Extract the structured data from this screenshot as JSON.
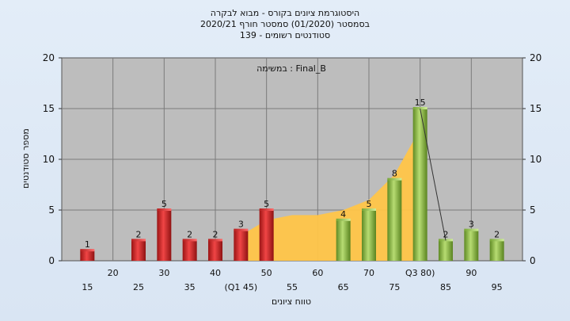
{
  "chart_data": {
    "type": "bar",
    "title": [
      "היסטוגרמת ציונים בקורס - מבוא לבקרה",
      "בסמסטר  (01/2020)  סמסטר חורף 2020/21",
      "139 - סטודנטים רשומים"
    ],
    "annotation": "במשימה : Final_B",
    "ylabel": "מספר סטודנטים",
    "xlabel": "טווח ציונים",
    "ylim": [
      0,
      20
    ],
    "yticks": [
      0,
      5,
      10,
      15,
      20
    ],
    "grid": true,
    "x_top_row": [
      "20",
      "30",
      "40",
      "50",
      "60",
      "70",
      "Q3 80)",
      "90"
    ],
    "x_top_positions": [
      20,
      30,
      40,
      50,
      60,
      70,
      80,
      90
    ],
    "x_bottom_row": [
      "15",
      "25",
      "35",
      "(Q1 45)",
      "55",
      "65",
      "75",
      "85",
      "95"
    ],
    "x_bottom_positions": [
      15,
      25,
      35,
      45,
      55,
      65,
      75,
      85,
      95
    ],
    "bars": [
      {
        "x": 15,
        "value": 1,
        "color": "red"
      },
      {
        "x": 20,
        "value": 0,
        "color": "red"
      },
      {
        "x": 25,
        "value": 2,
        "color": "red"
      },
      {
        "x": 30,
        "value": 5,
        "color": "red"
      },
      {
        "x": 35,
        "value": 2,
        "color": "red"
      },
      {
        "x": 40,
        "value": 2,
        "color": "red"
      },
      {
        "x": 45,
        "value": 3,
        "color": "red"
      },
      {
        "x": 50,
        "value": 5,
        "color": "red"
      },
      {
        "x": 65,
        "value": 4,
        "color": "green"
      },
      {
        "x": 70,
        "value": 5,
        "color": "green"
      },
      {
        "x": 75,
        "value": 8,
        "color": "green"
      },
      {
        "x": 80,
        "value": 15,
        "color": "green"
      },
      {
        "x": 85,
        "value": 2,
        "color": "green"
      },
      {
        "x": 90,
        "value": 3,
        "color": "green"
      },
      {
        "x": 95,
        "value": 2,
        "color": "green"
      }
    ],
    "area": [
      {
        "x": 45,
        "y": 2.5
      },
      {
        "x": 50,
        "y": 4
      },
      {
        "x": 55,
        "y": 4.5
      },
      {
        "x": 60,
        "y": 4.5
      },
      {
        "x": 65,
        "y": 5
      },
      {
        "x": 70,
        "y": 6
      },
      {
        "x": 75,
        "y": 8.5
      },
      {
        "x": 80,
        "y": 13
      }
    ],
    "overlay_line": [
      {
        "x": 80,
        "y": 15
      },
      {
        "x": 85,
        "y": 2
      }
    ],
    "colors": {
      "red_bar": "#e23a3a",
      "green_bar": "#93c04e",
      "area": "#ffc548",
      "plot_bg": "#bdbdbd",
      "grid": "#7a7a7a"
    }
  }
}
